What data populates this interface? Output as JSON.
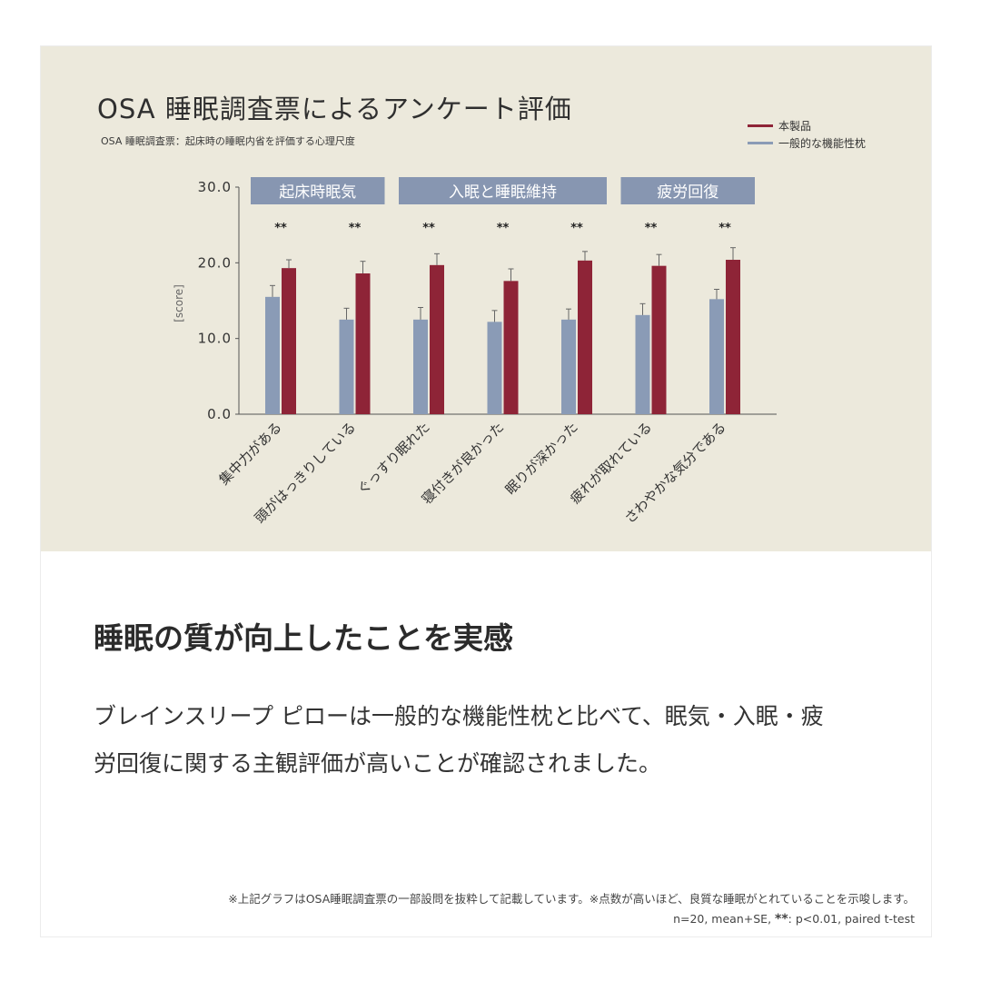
{
  "chart_data": {
    "type": "bar",
    "title": "OSA 睡眠調査票によるアンケート評価",
    "subtitle": "OSA 睡眠調査票：起床時の睡眠内省を評価する心理尺度",
    "ylabel": "[score]",
    "ylim": [
      0,
      30
    ],
    "yticks": [
      "0.0",
      "10.0",
      "20.0",
      "30.0"
    ],
    "categories": [
      "集中力がある",
      "頭がはっきりしている",
      "ぐっすり眠れた",
      "寝付きが良かった",
      "眠りが深かった",
      "疲れが取れている",
      "さわやかな気分である"
    ],
    "groups": [
      {
        "label": "起床時眠気",
        "start": 0,
        "end": 1
      },
      {
        "label": "入眠と睡眠維持",
        "start": 2,
        "end": 4
      },
      {
        "label": "疲労回復",
        "start": 5,
        "end": 6
      }
    ],
    "significance": [
      "**",
      "**",
      "**",
      "**",
      "**",
      "**",
      "**"
    ],
    "series": [
      {
        "name": "一般的な機能性枕",
        "color": "#8a9bb6",
        "values": [
          15.5,
          12.5,
          12.5,
          12.2,
          12.5,
          13.1,
          15.2
        ],
        "errors": [
          1.5,
          1.5,
          1.6,
          1.5,
          1.4,
          1.5,
          1.3
        ]
      },
      {
        "name": "本製品",
        "color": "#8e2437",
        "values": [
          19.3,
          18.6,
          19.7,
          17.6,
          20.3,
          19.6,
          20.4
        ],
        "errors": [
          1.1,
          1.6,
          1.5,
          1.6,
          1.2,
          1.5,
          1.6
        ]
      }
    ],
    "grid": false,
    "legend_position": "top-right"
  },
  "colors": {
    "panel_background": "#ece9dc",
    "group_box": "#8796b1",
    "product_bar": "#8e2437",
    "standard_bar": "#8a9bb6"
  },
  "content": {
    "headline": "睡眠の質が向上したことを実感",
    "body_line1": "ブレインスリープ ピローは一般的な機能性枕と比べて、眠気・入眠・疲",
    "body_line2": "労回復に関する主観評価が高いことが確認されました。"
  },
  "footnote": {
    "line1": "※上記グラフはOSA睡眠調査票の一部設問を抜粋して記載しています。※点数が高いほど、良質な睡眠がとれていることを示唆します。",
    "line2_prefix": "n=20, mean+SE, ",
    "line2_sig": "**",
    "line2_suffix": ": p<0.01, paired t-test"
  }
}
